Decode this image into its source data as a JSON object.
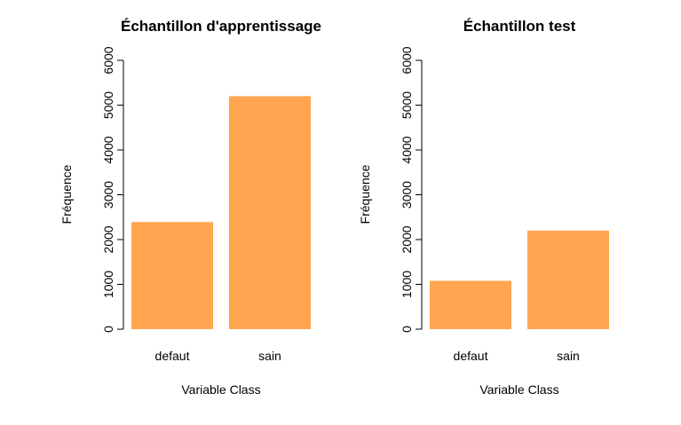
{
  "chart_data": [
    {
      "type": "bar",
      "title": "Échantillon d'apprentissage",
      "xlabel": "Variable Class",
      "ylabel": "Fréquence",
      "categories": [
        "defaut",
        "sain"
      ],
      "values": [
        2390,
        5200
      ],
      "ylim": [
        0,
        6000
      ],
      "yticks": [
        "0",
        "1000",
        "2000",
        "3000",
        "4000",
        "5000",
        "6000"
      ],
      "bar_color": "#FFA550",
      "grid": false
    },
    {
      "type": "bar",
      "title": "Échantillon test",
      "xlabel": "Variable Class",
      "ylabel": "Fréquence",
      "categories": [
        "defaut",
        "sain"
      ],
      "values": [
        1080,
        2200
      ],
      "ylim": [
        0,
        6000
      ],
      "yticks": [
        "0",
        "1000",
        "2000",
        "3000",
        "4000",
        "5000",
        "6000"
      ],
      "bar_color": "#FFA550",
      "grid": false
    }
  ]
}
